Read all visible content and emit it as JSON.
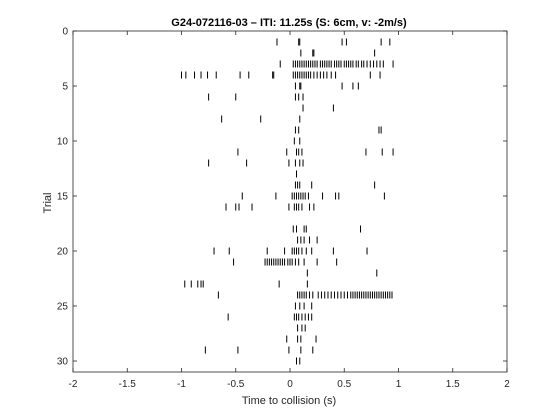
{
  "chart_data": {
    "type": "scatter",
    "style": "raster",
    "title": "G24-072116-03 – ITI: 11.25s (S: 6cm, v: -2m/s)",
    "xlabel": "Time to collision (s)",
    "ylabel": "Trial",
    "xlim": [
      -2,
      2
    ],
    "ylim": [
      0,
      31
    ],
    "y_reversed": true,
    "grid": false,
    "x_ticks": [
      -2,
      -1.5,
      -1,
      -0.5,
      0,
      0.5,
      1,
      1.5,
      2
    ],
    "x_tick_labels": [
      "-2",
      "-1.5",
      "-1",
      "-0.5",
      "0",
      "0.5",
      "1",
      "1.5",
      "2"
    ],
    "y_ticks": [
      0,
      5,
      10,
      15,
      20,
      25,
      30
    ],
    "y_tick_labels": [
      "0",
      "5",
      "10",
      "15",
      "20",
      "25",
      "30"
    ],
    "marker": "|",
    "color": "#000000",
    "trials": [
      {
        "trial": 1,
        "spikes": [
          -0.12,
          0.08,
          0.09,
          0.48,
          0.52,
          0.84,
          0.92
        ]
      },
      {
        "trial": 2,
        "spikes": [
          0.1,
          0.21,
          0.22,
          0.78
        ]
      },
      {
        "trial": 3,
        "spikes": [
          -0.09,
          0.03,
          0.05,
          0.07,
          0.09,
          0.11,
          0.13,
          0.15,
          0.17,
          0.19,
          0.21,
          0.23,
          0.25,
          0.28,
          0.3,
          0.32,
          0.34,
          0.36,
          0.38,
          0.41,
          0.43,
          0.45,
          0.47,
          0.5,
          0.52,
          0.54,
          0.56,
          0.58,
          0.61,
          0.63,
          0.66,
          0.68,
          0.71,
          0.74,
          0.77,
          0.8,
          0.83,
          0.86,
          0.95
        ]
      },
      {
        "trial": 4,
        "spikes": [
          -1.0,
          -0.96,
          -0.88,
          -0.82,
          -0.76,
          -0.68,
          -0.46,
          -0.38,
          -0.16,
          -0.15,
          0.03,
          0.05,
          0.07,
          0.09,
          0.11,
          0.13,
          0.15,
          0.17,
          0.19,
          0.22,
          0.25,
          0.28,
          0.31,
          0.34,
          0.38,
          0.42,
          0.74,
          0.83
        ]
      },
      {
        "trial": 5,
        "spikes": [
          0.05,
          0.09,
          0.1,
          0.48,
          0.58,
          0.63
        ]
      },
      {
        "trial": 6,
        "spikes": [
          -0.75,
          -0.5,
          0.05,
          0.08,
          0.12
        ]
      },
      {
        "trial": 7,
        "spikes": [
          0.12,
          0.4
        ]
      },
      {
        "trial": 8,
        "spikes": [
          -0.63,
          -0.27,
          0.09
        ]
      },
      {
        "trial": 9,
        "spikes": [
          0.05,
          0.08,
          0.82,
          0.84
        ]
      },
      {
        "trial": 10,
        "spikes": [
          0.04,
          0.09
        ]
      },
      {
        "trial": 11,
        "spikes": [
          -0.48,
          -0.03,
          0.06,
          0.08,
          0.11,
          0.7,
          0.85,
          0.95
        ]
      },
      {
        "trial": 12,
        "spikes": [
          -0.75,
          -0.4,
          -0.01,
          0.05,
          0.09,
          0.12
        ]
      },
      {
        "trial": 13,
        "spikes": [
          0.06
        ]
      },
      {
        "trial": 14,
        "spikes": [
          0.05,
          0.07,
          0.09,
          0.2,
          0.78
        ]
      },
      {
        "trial": 15,
        "spikes": [
          -0.44,
          -0.13,
          0.02,
          0.04,
          0.06,
          0.08,
          0.1,
          0.12,
          0.14,
          0.17,
          0.3,
          0.42,
          0.45,
          0.87
        ]
      },
      {
        "trial": 16,
        "spikes": [
          -0.59,
          -0.5,
          -0.47,
          -0.35,
          -0.01,
          0.04,
          0.06,
          0.08,
          0.11,
          0.18,
          0.22
        ]
      },
      {
        "trial": 18,
        "spikes": [
          0.03,
          0.06,
          0.13,
          0.15,
          0.65
        ]
      },
      {
        "trial": 19,
        "spikes": [
          0.07,
          0.1,
          0.13,
          0.18,
          0.25
        ]
      },
      {
        "trial": 20,
        "spikes": [
          -0.7,
          -0.56,
          -0.21,
          -0.05,
          0.02,
          0.04,
          0.06,
          0.08,
          0.11,
          0.15,
          0.2,
          0.4,
          0.71
        ]
      },
      {
        "trial": 21,
        "spikes": [
          -0.52,
          -0.23,
          -0.21,
          -0.19,
          -0.17,
          -0.15,
          -0.13,
          -0.11,
          -0.09,
          -0.07,
          -0.05,
          -0.02,
          0.0,
          0.02,
          0.05,
          0.08,
          0.13,
          0.25,
          0.43
        ]
      },
      {
        "trial": 22,
        "spikes": [
          0.16,
          0.8
        ]
      },
      {
        "trial": 23,
        "spikes": [
          -0.97,
          -0.91,
          -0.85,
          -0.82,
          -0.8,
          -0.1,
          0.16
        ]
      },
      {
        "trial": 24,
        "spikes": [
          -0.66,
          0.07,
          0.09,
          0.11,
          0.13,
          0.15,
          0.18,
          0.21,
          0.26,
          0.29,
          0.32,
          0.35,
          0.38,
          0.41,
          0.44,
          0.47,
          0.5,
          0.53,
          0.56,
          0.58,
          0.6,
          0.62,
          0.64,
          0.66,
          0.68,
          0.7,
          0.72,
          0.74,
          0.76,
          0.78,
          0.8,
          0.82,
          0.84,
          0.86,
          0.88,
          0.9,
          0.92,
          0.94
        ]
      },
      {
        "trial": 25,
        "spikes": [
          0.05,
          0.09,
          0.13,
          0.2
        ]
      },
      {
        "trial": 26,
        "spikes": [
          -0.57,
          0.04,
          0.06,
          0.08,
          0.11,
          0.14,
          0.17,
          0.2
        ]
      },
      {
        "trial": 27,
        "spikes": [
          0.07,
          0.11,
          0.14
        ]
      },
      {
        "trial": 28,
        "spikes": [
          -0.03,
          0.07,
          0.1,
          0.24
        ]
      },
      {
        "trial": 29,
        "spikes": [
          -0.78,
          -0.48,
          -0.01,
          0.1,
          0.21
        ]
      },
      {
        "trial": 30,
        "spikes": [
          0.06,
          0.09
        ]
      }
    ]
  }
}
